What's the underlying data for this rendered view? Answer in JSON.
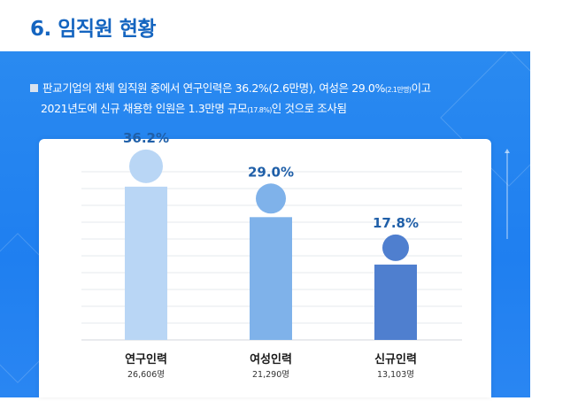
{
  "page": {
    "title": "6. 임직원 현황"
  },
  "summary": {
    "line1_a": "판교기업의 전체 임직원 중에서 연구인력은 36.2%(2.6만명), 여성은 29.0%",
    "line1_small": "(2.1만명)",
    "line1_b": "이고",
    "line2_a": "2021년도에 신규 채용한 인원은 1.3만명 규모",
    "line2_small": "(17.8%)",
    "line2_b": "인 것으로 조사됨"
  },
  "chart_data": {
    "type": "bar",
    "categories": [
      "연구인력",
      "여성인력",
      "신규인력"
    ],
    "values": [
      36.2,
      29.0,
      17.8
    ],
    "value_labels": [
      "36.2%",
      "29.0%",
      "17.8%"
    ],
    "counts": [
      "26,606명",
      "21,290명",
      "13,103명"
    ],
    "colors": [
      "#b9d6f5",
      "#7fb2ea",
      "#4f7fcf"
    ],
    "label_color": "#1f5fa8",
    "grid": true,
    "ylim": [
      0,
      40
    ]
  },
  "colors": {
    "title": "#1565c0",
    "panel": "#2a8af0",
    "bar_light": "#b9d6f5",
    "bar_mid": "#7fb2ea",
    "bar_dark": "#4f7fcf"
  }
}
